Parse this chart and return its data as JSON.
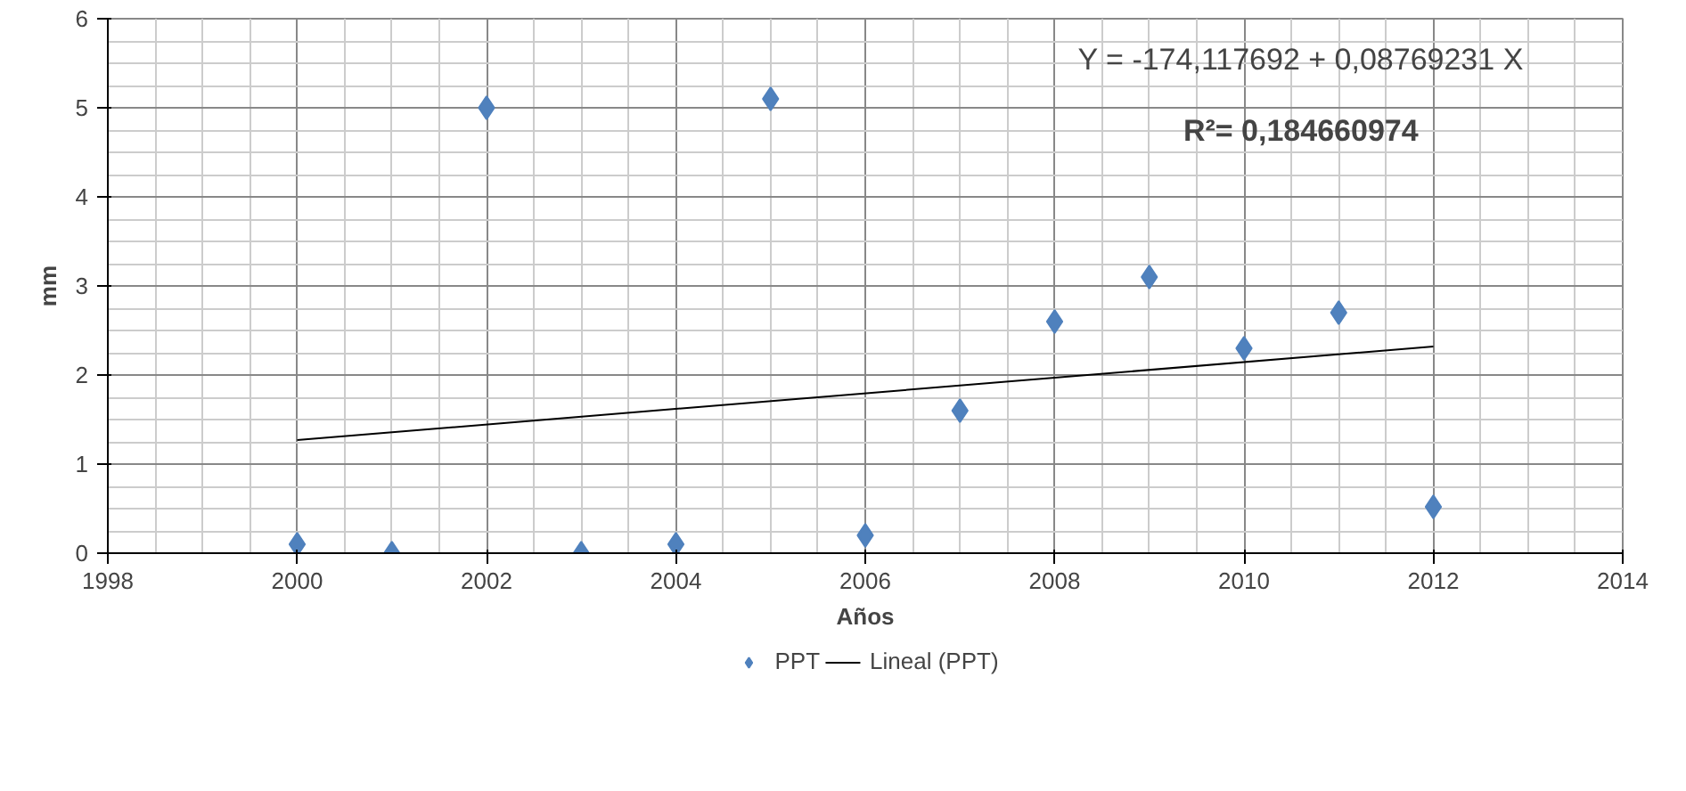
{
  "chart_data": {
    "type": "scatter",
    "xlabel": "Años",
    "ylabel": "mm",
    "xlim": [
      1998,
      2014
    ],
    "xticks": [
      1998,
      2000,
      2002,
      2004,
      2006,
      2008,
      2010,
      2012,
      2014
    ],
    "ylim": [
      0,
      6
    ],
    "yticks": [
      0,
      1,
      2,
      3,
      4,
      5,
      6
    ],
    "grid": true,
    "legend": "bottom",
    "series": [
      {
        "name": "PPT",
        "marker": "diamond",
        "color": "#4f81bd",
        "x": [
          2000,
          2001,
          2002,
          2003,
          2004,
          2005,
          2006,
          2007,
          2008,
          2009,
          2010,
          2011,
          2012
        ],
        "values": [
          0.1,
          0.0,
          5.0,
          0.0,
          0.1,
          5.1,
          0.2,
          1.6,
          2.6,
          3.1,
          2.3,
          2.7,
          0.52
        ]
      },
      {
        "name": "Lineal (PPT)",
        "type": "line",
        "color": "#000000",
        "line_style": "solid",
        "x": [
          2000,
          2012
        ],
        "values": [
          1.27,
          2.32
        ]
      }
    ],
    "annotations": [
      "Y = -174,117692 + 0,08769231 X",
      "R²= 0,184660974"
    ]
  }
}
